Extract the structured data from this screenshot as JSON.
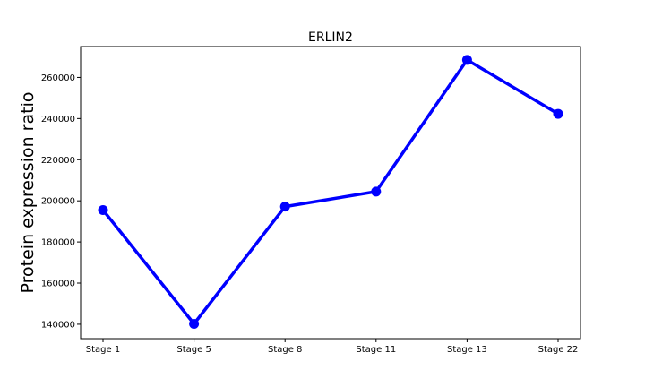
{
  "chart_data": {
    "type": "line",
    "title": "ERLIN2",
    "xlabel": "",
    "ylabel": "Protein expression ratio",
    "categories": [
      "Stage 1",
      "Stage 5",
      "Stage 8",
      "Stage 11",
      "Stage 13",
      "Stage 22"
    ],
    "series": [
      {
        "values": [
          195500,
          140200,
          197200,
          204500,
          268500,
          242300
        ]
      }
    ],
    "yticks": [
      140000,
      160000,
      180000,
      200000,
      220000,
      240000,
      260000
    ],
    "ylim": [
      133000,
      275000
    ],
    "grid": false,
    "line_color": "#0000ff"
  }
}
